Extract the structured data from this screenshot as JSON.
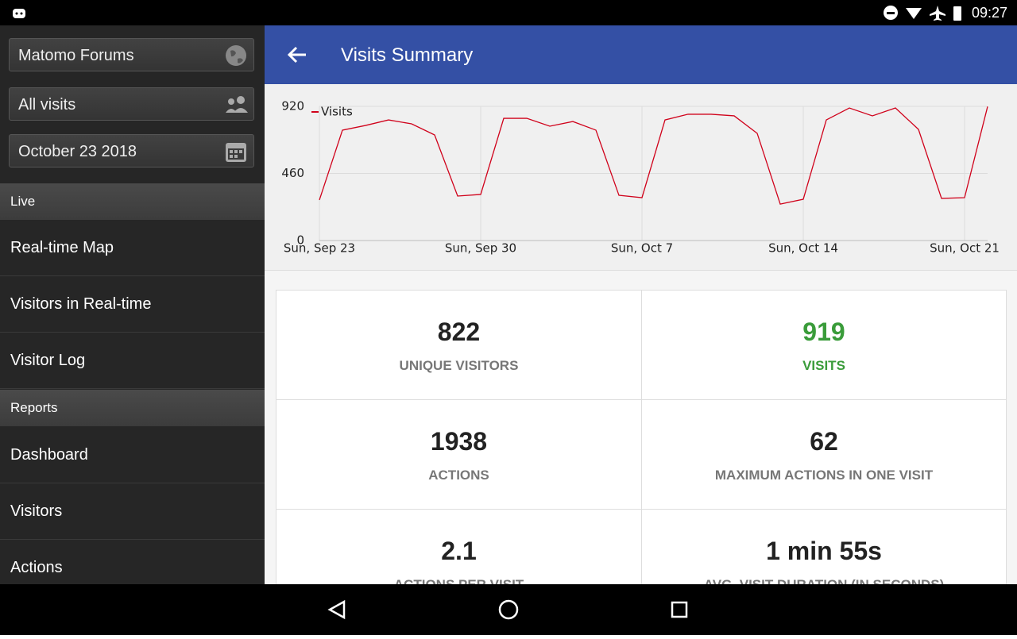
{
  "status_bar": {
    "time": "09:27"
  },
  "sidebar": {
    "site": "Matomo Forums",
    "segment": "All visits",
    "date": "October 23 2018",
    "sections": [
      {
        "title": "Live",
        "items": [
          "Real-time Map",
          "Visitors in Real-time",
          "Visitor Log"
        ]
      },
      {
        "title": "Reports",
        "items": [
          "Dashboard",
          "Visitors",
          "Actions"
        ]
      }
    ]
  },
  "header": {
    "title": "Visits Summary"
  },
  "chart_data": {
    "type": "line",
    "categories": [
      "Sun, Sep 23",
      null,
      null,
      null,
      null,
      null,
      null,
      "Sun, Sep 30",
      null,
      null,
      null,
      null,
      null,
      null,
      "Sun, Oct 7",
      null,
      null,
      null,
      null,
      null,
      null,
      "Sun, Oct 14",
      null,
      null,
      null,
      null,
      null,
      null,
      "Sun, Oct 21",
      null
    ],
    "series": [
      {
        "name": "Visits",
        "color": "#d0021b",
        "values": [
          278,
          757,
          789,
          827,
          800,
          724,
          305,
          316,
          838,
          838,
          784,
          816,
          757,
          310,
          294,
          827,
          866,
          866,
          855,
          735,
          250,
          283,
          827,
          909,
          855,
          909,
          762,
          289,
          294,
          919
        ]
      }
    ],
    "ylim": [
      0,
      920
    ],
    "yticks": [
      0,
      460,
      920
    ],
    "grid": true,
    "legend": "top-left"
  },
  "metrics": [
    {
      "value": 822,
      "label": "UNIQUE VISITORS"
    },
    {
      "value": 919,
      "label": "VISITS"
    },
    {
      "value": 1938,
      "label": "ACTIONS"
    },
    {
      "value": 62,
      "label": "MAXIMUM ACTIONS IN ONE VISIT"
    },
    {
      "value": 2.1,
      "label": "ACTIONS PER VISIT"
    },
    {
      "value": "1 min 55s",
      "label": "AVG. VISIT DURATION (IN SECONDS)"
    }
  ]
}
